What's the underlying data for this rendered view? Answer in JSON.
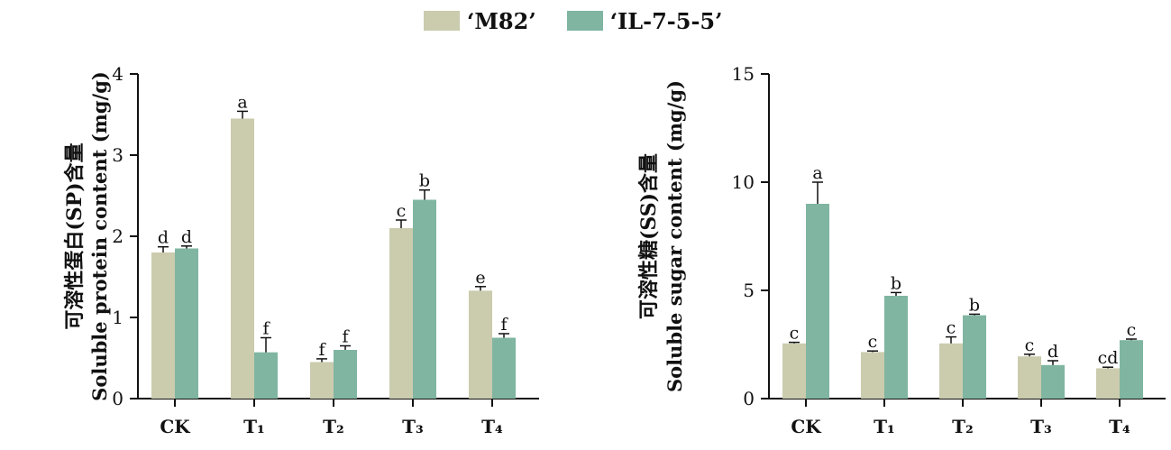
{
  "legend": {
    "items": [
      {
        "label": "‘M82’",
        "color": "#cbcbae"
      },
      {
        "label": "‘IL-7-5-5’",
        "color": "#7fb5a1"
      }
    ]
  },
  "colors": {
    "M82": "#cbcbae",
    "IL755": "#7fb5a1",
    "axis": "#111111"
  },
  "chart_data": [
    {
      "type": "bar",
      "ylabel_cn": "可溶性蛋白(SP)含量",
      "ylabel_en": "Soluble protein content (mg/g)",
      "categories": [
        "CK",
        "T₁",
        "T₂",
        "T₃",
        "T₄"
      ],
      "ylim": [
        0,
        4
      ],
      "yticks": [
        0,
        1,
        2,
        3,
        4
      ],
      "series": [
        {
          "name": "‘M82’",
          "values": [
            1.8,
            3.45,
            0.45,
            2.1,
            1.33
          ],
          "errors": [
            0.07,
            0.09,
            0.04,
            0.1,
            0.05
          ],
          "letters": [
            "d",
            "a",
            "f",
            "c",
            "e"
          ]
        },
        {
          "name": "‘IL-7-5-5’",
          "values": [
            1.85,
            0.57,
            0.6,
            2.45,
            0.75
          ],
          "errors": [
            0.03,
            0.18,
            0.05,
            0.12,
            0.05
          ],
          "letters": [
            "d",
            "f",
            "f",
            "b",
            "f"
          ]
        }
      ]
    },
    {
      "type": "bar",
      "ylabel_cn": "可溶性糖(SS)含量",
      "ylabel_en": "Soluble sugar content (mg/g)",
      "categories": [
        "CK",
        "T₁",
        "T₂",
        "T₃",
        "T₄"
      ],
      "ylim": [
        0,
        15
      ],
      "yticks": [
        0,
        5,
        10,
        15
      ],
      "series": [
        {
          "name": "‘M82’",
          "values": [
            2.55,
            2.15,
            2.55,
            1.95,
            1.4
          ],
          "errors": [
            0.05,
            0.05,
            0.3,
            0.1,
            0.05
          ],
          "letters": [
            "c",
            "c",
            "c",
            "c",
            "cd"
          ]
        },
        {
          "name": "‘IL-7-5-5’",
          "values": [
            9.0,
            4.75,
            3.85,
            1.55,
            2.7
          ],
          "errors": [
            1.0,
            0.15,
            0.05,
            0.2,
            0.05
          ],
          "letters": [
            "a",
            "b",
            "b",
            "d",
            "c"
          ]
        }
      ]
    }
  ]
}
